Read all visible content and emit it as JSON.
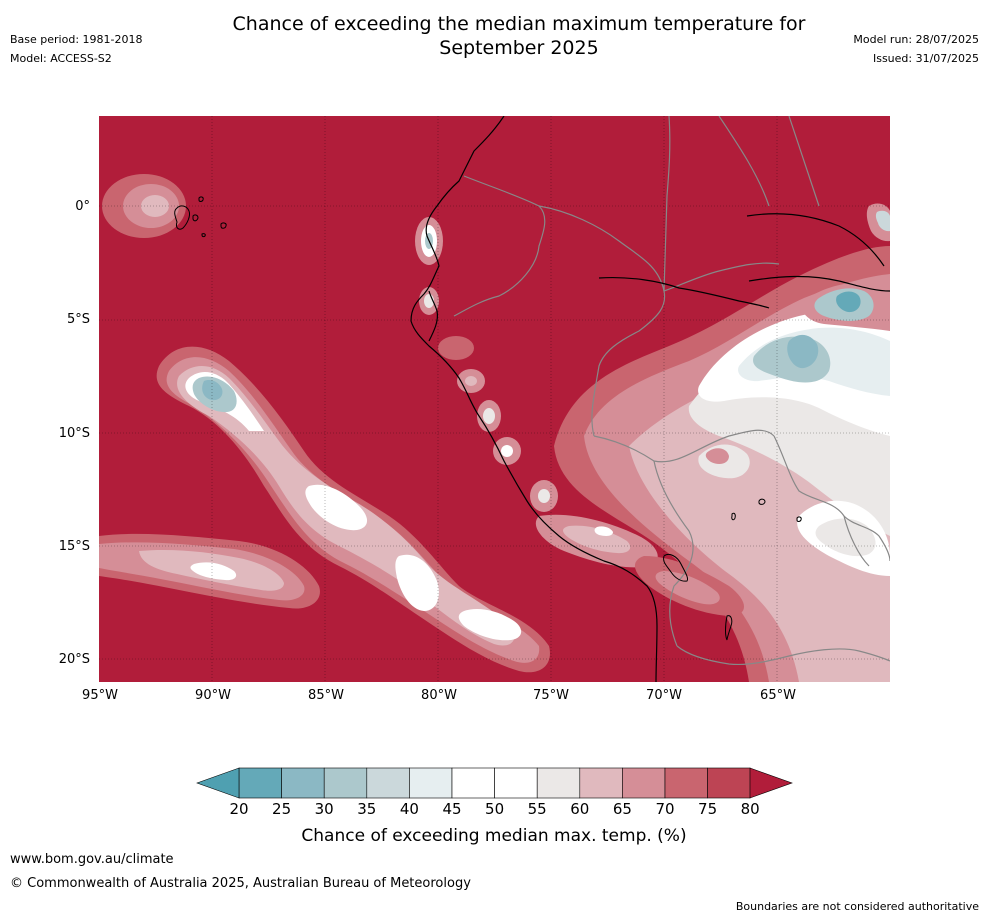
{
  "header": {
    "base_period": "Base period: 1981-2018",
    "model": "Model: ACCESS-S2",
    "title_line1": "Chance of exceeding the median maximum temperature for",
    "title_line2": "September 2025",
    "model_run": "Model run: 28/07/2025",
    "issued": "Issued: 31/07/2025"
  },
  "map": {
    "region_extent": {
      "lon": [
        -95,
        -60
      ],
      "lat": [
        -21,
        4
      ]
    },
    "background_color": "#b11d3a",
    "lon_ticks": [
      "95°W",
      "90°W",
      "85°W",
      "80°W",
      "75°W",
      "70°W",
      "65°W"
    ],
    "lat_ticks": [
      "0°",
      "5°S",
      "10°S",
      "15°S",
      "20°S"
    ]
  },
  "colorbar": {
    "labels": [
      "20",
      "25",
      "30",
      "35",
      "40",
      "45",
      "50",
      "55",
      "60",
      "65",
      "70",
      "75",
      "80"
    ],
    "colors": [
      "#64a9b8",
      "#8bb8c4",
      "#acc8cc",
      "#cbd8db",
      "#e6eef0",
      "#ffffff",
      "#ffffff",
      "#ebe8e7",
      "#e0b9be",
      "#d58e97",
      "#c9656f",
      "#bd4454"
    ],
    "under_color": "#4fa0b1",
    "over_color": "#b11d3a",
    "title": "Chance of exceeding median max. temp. (%)"
  },
  "footer": {
    "url": "www.bom.gov.au/climate",
    "copyright": "© Commonwealth of Australia 2025, Australian Bureau of Meteorology",
    "disclaimer": "Boundaries are not considered authoritative"
  }
}
